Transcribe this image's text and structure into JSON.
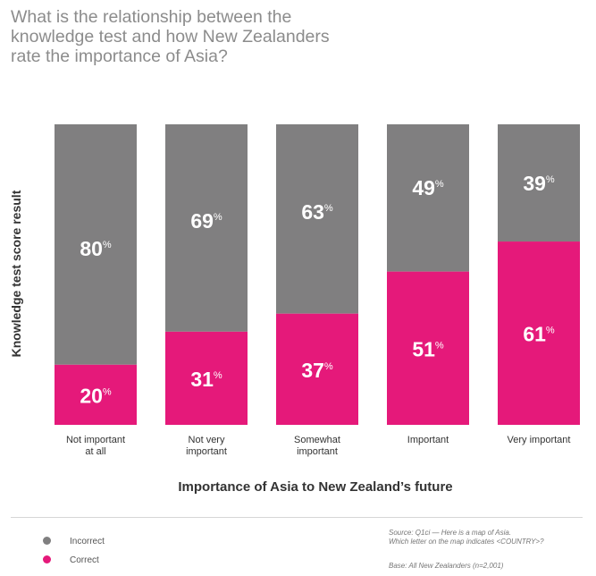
{
  "title": "What is the relationship between the knowledge test and how New Zealanders rate the importance of Asia?",
  "legend": {
    "incorrect": "Incorrect",
    "correct": "Correct"
  },
  "footer": {
    "source_line1": "Source: Q1ci — Here is a map of Asia.",
    "source_line2": "Which letter on the map indicates <COUNTRY>?",
    "base": "Base: All New Zealanders (n=2,001)"
  },
  "colors": {
    "incorrect": "#807f80",
    "correct": "#e5197a",
    "title": "#8c8c8c"
  },
  "chart_data": {
    "type": "bar",
    "stacked": true,
    "percent_suffix": "%",
    "title": "",
    "xlabel": "Importance of Asia to New Zealand’s future",
    "ylabel": "Knowledge test score result",
    "ylim": [
      0,
      100
    ],
    "grid": false,
    "legend_position": "bottom-left",
    "categories": [
      [
        "Not important",
        "at all"
      ],
      [
        "Not very",
        "important"
      ],
      [
        "Somewhat",
        "important"
      ],
      [
        "Important"
      ],
      [
        "Very important"
      ]
    ],
    "series": [
      {
        "name": "Correct",
        "color": "#e5197a",
        "values": [
          20,
          31,
          37,
          51,
          61
        ]
      },
      {
        "name": "Incorrect",
        "color": "#807f80",
        "values": [
          80,
          69,
          63,
          49,
          39
        ]
      }
    ]
  }
}
